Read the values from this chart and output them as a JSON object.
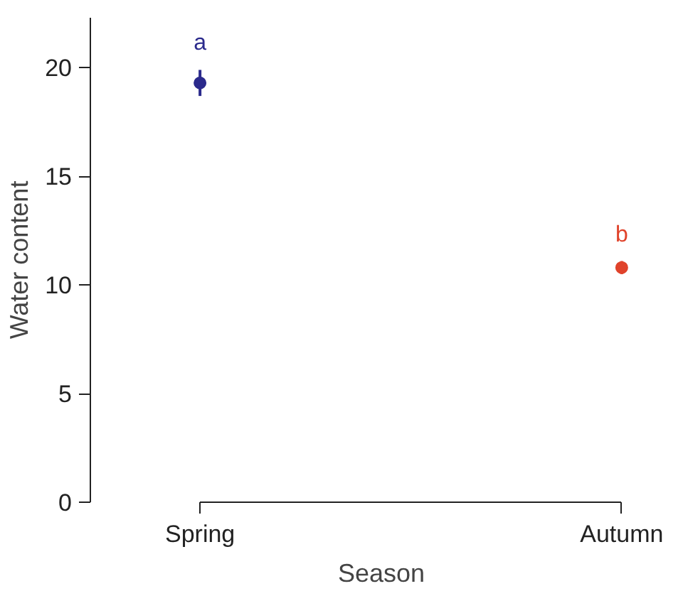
{
  "chart_data": {
    "type": "scatter",
    "xlabel": "Season",
    "ylabel": "Water content",
    "categories": [
      "Spring",
      "Autumn"
    ],
    "values": [
      19.3,
      10.8
    ],
    "errors": [
      0.6,
      0.3
    ],
    "colors": [
      "#2b2a8c",
      "#e0432b"
    ],
    "ylim": [
      0,
      22.3
    ],
    "yticks": [
      0,
      5,
      10,
      15,
      20
    ],
    "grid": false,
    "marker": "circle",
    "annotations": [
      "a",
      "b"
    ]
  }
}
